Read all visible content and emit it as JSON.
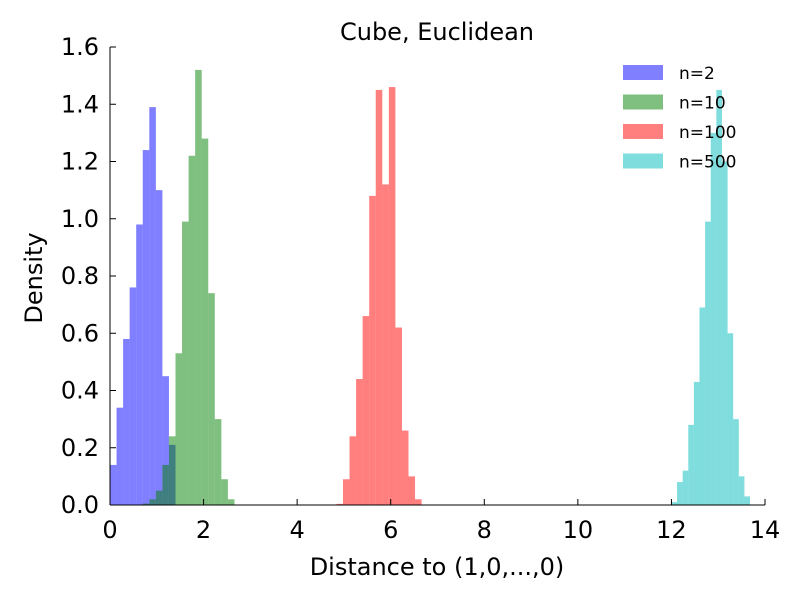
{
  "chart_data": {
    "type": "bar",
    "title": "Cube, Euclidean",
    "xlabel": "Distance to (1,0,...,0)",
    "ylabel": "Density",
    "xlim": [
      0,
      14
    ],
    "ylim": [
      0,
      1.6
    ],
    "xticks": [
      "0",
      "2",
      "4",
      "6",
      "8",
      "10",
      "12",
      "14"
    ],
    "yticks": [
      "0.0",
      "0.2",
      "0.4",
      "0.6",
      "0.8",
      "1.0",
      "1.2",
      "1.4",
      "1.6"
    ],
    "legend_position": "top-right",
    "bar_opacity": 0.5,
    "series": [
      {
        "name": "n=2",
        "color": "#0000ff",
        "bin_edges": [
          0.0,
          0.14,
          0.28,
          0.42,
          0.56,
          0.7,
          0.84,
          0.98,
          1.12,
          1.26,
          1.4
        ],
        "values": [
          0.14,
          0.34,
          0.58,
          0.76,
          0.98,
          1.24,
          1.39,
          1.1,
          0.45,
          0.21
        ]
      },
      {
        "name": "n=10",
        "color": "#008000",
        "bin_edges": [
          0.7,
          0.84,
          0.98,
          1.12,
          1.26,
          1.4,
          1.54,
          1.68,
          1.82,
          1.96,
          2.1,
          2.24,
          2.38,
          2.52,
          2.66
        ],
        "values": [
          0.005,
          0.02,
          0.05,
          0.14,
          0.24,
          0.53,
          0.99,
          1.22,
          1.52,
          1.28,
          0.74,
          0.3,
          0.09,
          0.02
        ]
      },
      {
        "name": "n=100",
        "color": "#ff0000",
        "bin_edges": [
          4.84,
          4.98,
          5.12,
          5.26,
          5.4,
          5.54,
          5.68,
          5.82,
          5.96,
          6.1,
          6.24,
          6.38,
          6.52,
          6.66
        ],
        "values": [
          0.004,
          0.09,
          0.24,
          0.44,
          0.66,
          1.08,
          1.45,
          1.12,
          1.46,
          0.62,
          0.26,
          0.1,
          0.02
        ]
      },
      {
        "name": "n=500",
        "color": "#00bbbb",
        "bin_edges": [
          12.0,
          12.12,
          12.24,
          12.36,
          12.48,
          12.6,
          12.72,
          12.84,
          12.96,
          13.08,
          13.2,
          13.32,
          13.44,
          13.56,
          13.68
        ],
        "values": [
          0.01,
          0.08,
          0.12,
          0.28,
          0.43,
          0.69,
          0.99,
          1.3,
          1.45,
          1.2,
          0.6,
          0.3,
          0.1,
          0.03
        ]
      }
    ]
  }
}
